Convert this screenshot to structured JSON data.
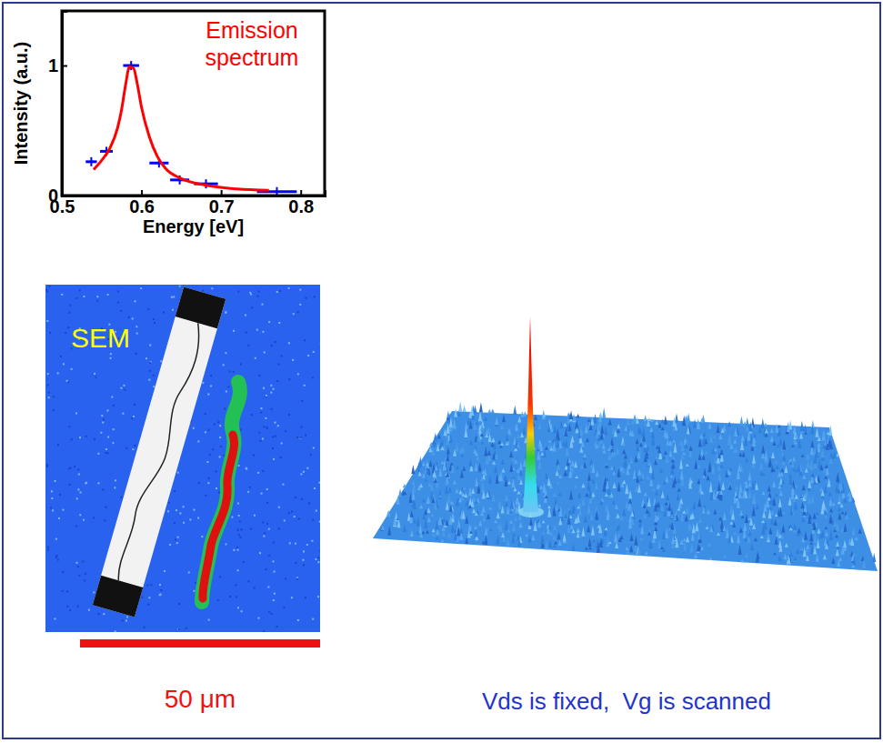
{
  "chart_data": {
    "type": "scatter",
    "y_label": "Intensity (a.u.)",
    "x_label": "Energy [eV]",
    "annotation": "Emission spectrum",
    "xlim": [
      0.5,
      0.83
    ],
    "xticks": [
      0.5,
      0.6,
      0.7,
      0.8
    ],
    "ylim": [
      0,
      1.42
    ],
    "yticks": [
      0,
      1
    ],
    "grid": false,
    "series": [
      {
        "type": "scatter",
        "marker": "plus",
        "color": "#0000ff",
        "x": [
          0.537,
          0.556,
          0.587,
          0.622,
          0.648,
          0.681,
          0.77
        ],
        "values": [
          0.26,
          0.34,
          1.0,
          0.25,
          0.12,
          0.09,
          0.03
        ],
        "x_error": [
          0.007,
          0.008,
          0.01,
          0.012,
          0.012,
          0.015,
          0.025
        ]
      },
      {
        "type": "line",
        "line_style": "solid",
        "color": "#ff0000",
        "x": [
          0.54,
          0.55,
          0.56,
          0.57,
          0.575,
          0.58,
          0.585,
          0.59,
          0.595,
          0.6,
          0.61,
          0.62,
          0.63,
          0.65,
          0.68,
          0.72,
          0.76
        ],
        "values": [
          0.2,
          0.27,
          0.36,
          0.52,
          0.66,
          0.85,
          0.99,
          0.98,
          0.85,
          0.68,
          0.45,
          0.3,
          0.21,
          0.13,
          0.08,
          0.05,
          0.04
        ]
      }
    ]
  },
  "image_labels": {
    "sem": "SEM",
    "scale_bar": "50 μm",
    "caption": "Vds is fixed,  Vg is scanned"
  }
}
